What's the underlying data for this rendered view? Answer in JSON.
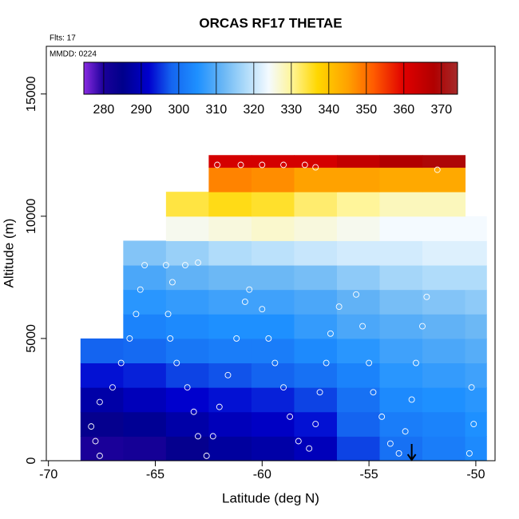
{
  "chart_data": {
    "type": "heatmap",
    "title": "ORCAS RF17 THETAE",
    "annotations": [
      "Flts: 17",
      "MMDD: 0224"
    ],
    "xlabel": "Latitude (deg N)",
    "ylabel": "Altitude (m)",
    "xlim": [
      -70.1,
      -49.1
    ],
    "xticks": [
      -70,
      -65,
      -60,
      -55,
      -50
    ],
    "ylim": [
      0,
      16950
    ],
    "yticks": [
      0,
      5000,
      10000,
      15000
    ],
    "x_edges": [
      -68.5,
      -66.5,
      -64.5,
      -62.5,
      -60.5,
      -58.5,
      -56.5,
      -54.5,
      -52.5,
      -50.5,
      -49.5
    ],
    "y_edges": [
      0,
      1000,
      2000,
      3000,
      4000,
      5000,
      6000,
      7000,
      8000,
      9000,
      10000,
      11000,
      12000,
      12500
    ],
    "z": [
      [
        280,
        281,
        284,
        287,
        288,
        290,
        296,
        300,
        302,
        304
      ],
      [
        284,
        286,
        288,
        290,
        291,
        293,
        298,
        302,
        303,
        305
      ],
      [
        288,
        290,
        292,
        293,
        294,
        296,
        300,
        304,
        305,
        306
      ],
      [
        293,
        294,
        296,
        297,
        298,
        300,
        303,
        306,
        307,
        308
      ],
      [
        298,
        299,
        301,
        302,
        302,
        304,
        306,
        308,
        309,
        310
      ],
      [
        null,
        303,
        304,
        305,
        305,
        307,
        309,
        310,
        311,
        312
      ],
      [
        null,
        306,
        307,
        308,
        308,
        309,
        311,
        313,
        314,
        315
      ],
      [
        null,
        309,
        311,
        312,
        312,
        313,
        315,
        317,
        318,
        318
      ],
      [
        null,
        314,
        316,
        318,
        319,
        320,
        321,
        321,
        322,
        322
      ],
      [
        null,
        null,
        325,
        326,
        327,
        326,
        325,
        324,
        324,
        324
      ],
      [
        null,
        null,
        334,
        336,
        335,
        332,
        330,
        328,
        328,
        null
      ],
      [
        null,
        null,
        null,
        348,
        347,
        345,
        345,
        344,
        344,
        null
      ],
      [
        null,
        null,
        null,
        362,
        362,
        362,
        365,
        368,
        369,
        null
      ]
    ],
    "clim": [
      274.7,
      374.3
    ],
    "cticks": [
      280,
      290,
      300,
      310,
      320,
      330,
      340,
      350,
      360,
      370
    ],
    "colorscale": [
      [
        274.7,
        "#8a2be2"
      ],
      [
        280,
        "#1a0099"
      ],
      [
        285,
        "#00008b"
      ],
      [
        292,
        "#0000cd"
      ],
      [
        298,
        "#1464f0"
      ],
      [
        305,
        "#1e90ff"
      ],
      [
        312,
        "#6cb8f5"
      ],
      [
        318,
        "#b0dcfa"
      ],
      [
        324,
        "#f4faff"
      ],
      [
        330,
        "#fff59a"
      ],
      [
        337,
        "#ffd700"
      ],
      [
        345,
        "#ffa200"
      ],
      [
        352,
        "#ff5a00"
      ],
      [
        360,
        "#e00000"
      ],
      [
        368,
        "#b00000"
      ],
      [
        374.3,
        "#a52a2a"
      ]
    ],
    "track": {
      "color": "#ffffff",
      "x": [
        -67.6,
        -67.8,
        -68.0,
        -67.6,
        -67.0,
        -66.6,
        -66.2,
        -65.9,
        -65.7,
        -65.5,
        -64.5,
        -63.6,
        -63.0,
        -62.1,
        -61.0,
        -60.0,
        -59.0,
        -58.0,
        -57.5,
        -64.2,
        -64.4,
        -64.3,
        -64.0,
        -63.5,
        -63.2,
        -63.0,
        -62.6,
        -62.3,
        -62.0,
        -61.6,
        -61.2,
        -60.8,
        -60.6,
        -60.0,
        -59.7,
        -59.4,
        -59.0,
        -58.7,
        -58.3,
        -57.8,
        -57.5,
        -57.3,
        -57.0,
        -56.8,
        -56.4,
        -55.6,
        -55.3,
        -55.0,
        -54.8,
        -54.4,
        -54.0,
        -53.6,
        -53.3,
        -53.0,
        -52.8,
        -52.5,
        -52.3,
        -51.8,
        -50.3,
        -50.1,
        -50.2
      ],
      "y": [
        200,
        800,
        1400,
        2400,
        3000,
        4000,
        5000,
        6000,
        7000,
        8000,
        8000,
        8000,
        8100,
        12100,
        12100,
        12100,
        12100,
        12100,
        12000,
        7300,
        6000,
        5000,
        4000,
        3000,
        2000,
        1000,
        200,
        1000,
        2200,
        3500,
        5000,
        6500,
        7000,
        6200,
        5000,
        4000,
        3000,
        1800,
        800,
        500,
        1500,
        2800,
        4000,
        5200,
        6300,
        6800,
        5500,
        4000,
        2800,
        1800,
        700,
        300,
        1200,
        2500,
        4000,
        5500,
        6700,
        11900,
        300,
        1500,
        3000
      ]
    },
    "arrow_x": -53
  }
}
